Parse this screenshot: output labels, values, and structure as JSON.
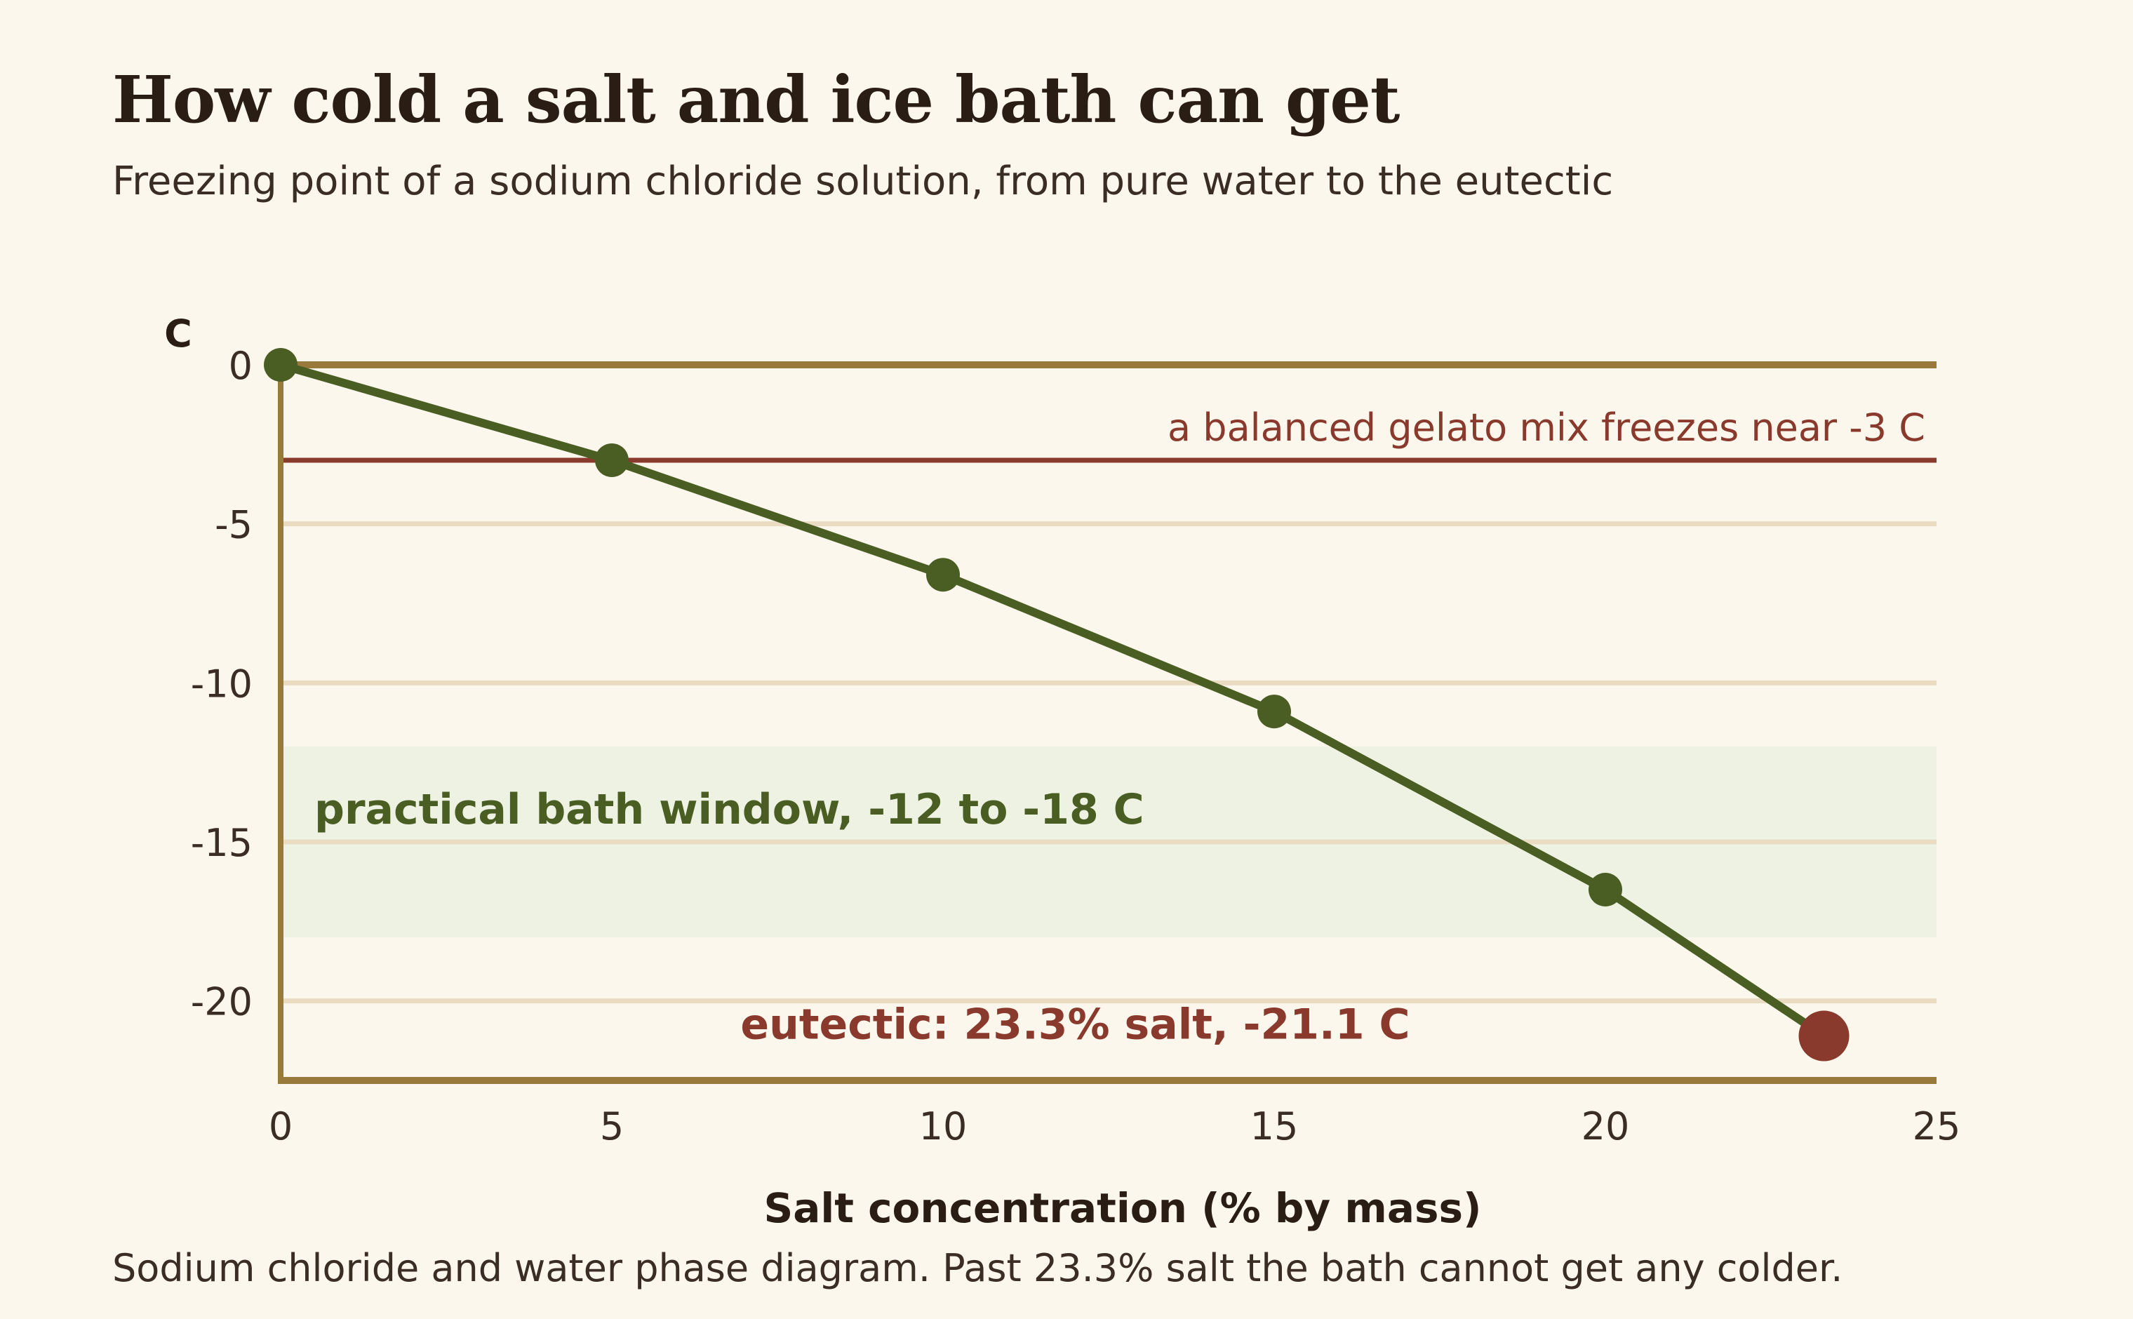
{
  "title": "How cold a salt and ice bath can get",
  "subtitle": "Freezing point of a sodium chloride solution, from pure water to the eutectic",
  "caption": "Sodium chloride and water phase diagram. Past 23.3% salt the bath cannot get any colder.",
  "colors": {
    "background": "#fbf7ec",
    "axis": "#9a7a3c",
    "grid": "#e9dcc2",
    "series": "#4a5e23",
    "reference": "#8a3a2c",
    "band": "#eef2e2",
    "eutectic": "#8a3a2c",
    "text": "#2a1d14"
  },
  "chart_data": {
    "type": "line",
    "xlabel": "Salt concentration (% by mass)",
    "ylabel": "C",
    "xlim": [
      0,
      25
    ],
    "ylim": [
      -22.5,
      0
    ],
    "x_ticks": [
      0,
      5,
      10,
      15,
      20,
      25
    ],
    "y_ticks": [
      0,
      -5,
      -10,
      -15,
      -20
    ],
    "grid": "horizontal",
    "series": [
      {
        "x": [
          0,
          5,
          10,
          15,
          20,
          23.3
        ],
        "y": [
          0,
          -3.0,
          -6.6,
          -10.9,
          -16.5,
          -21.1
        ]
      }
    ],
    "reference_line": {
      "y": -3,
      "label": "a balanced gelato mix freezes near -3 C"
    },
    "band": {
      "y_from": -12,
      "y_to": -18,
      "label": "practical bath window, -12 to -18 C"
    },
    "highlight_point": {
      "x": 23.3,
      "y": -21.1,
      "label": "eutectic: 23.3% salt, -21.1 C"
    }
  }
}
